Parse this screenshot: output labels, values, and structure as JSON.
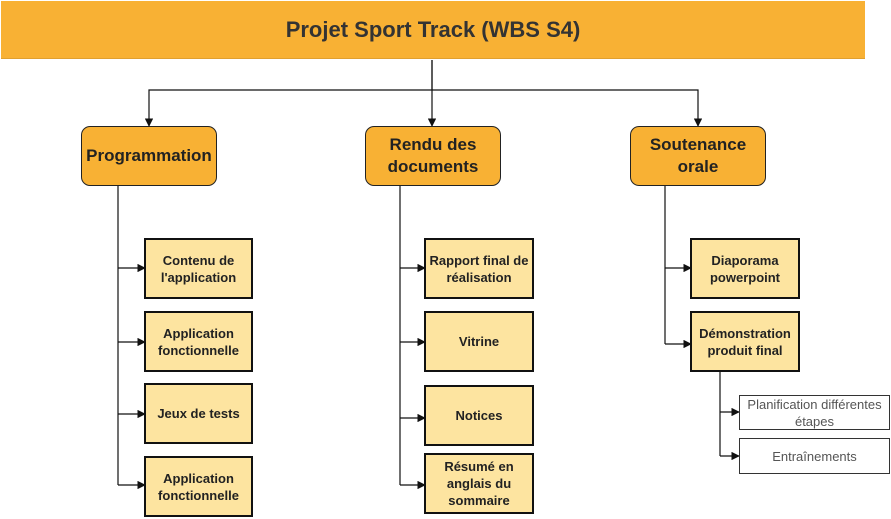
{
  "title": "Projet Sport Track (WBS S4)",
  "branches": [
    {
      "label": "Programmation",
      "children": [
        "Contenu de l'application",
        "Application fonctionnelle",
        "Jeux de tests",
        "Application fonctionnelle"
      ]
    },
    {
      "label": "Rendu des documents",
      "children": [
        "Rapport final de réalisation",
        "Vitrine",
        "Notices",
        "Résumé en anglais du sommaire"
      ]
    },
    {
      "label": "Soutenance orale",
      "children": [
        "Diaporama powerpoint",
        "Démonstration produit final"
      ],
      "sub_children": [
        "Planification différentes étapes",
        "Entraînements"
      ]
    }
  ],
  "colors": {
    "header_fill": "#f8b134",
    "branch_fill": "#f8b134",
    "task_fill": "#fde4a0",
    "subtask_fill": "#ffffff",
    "stroke": "#111111"
  }
}
